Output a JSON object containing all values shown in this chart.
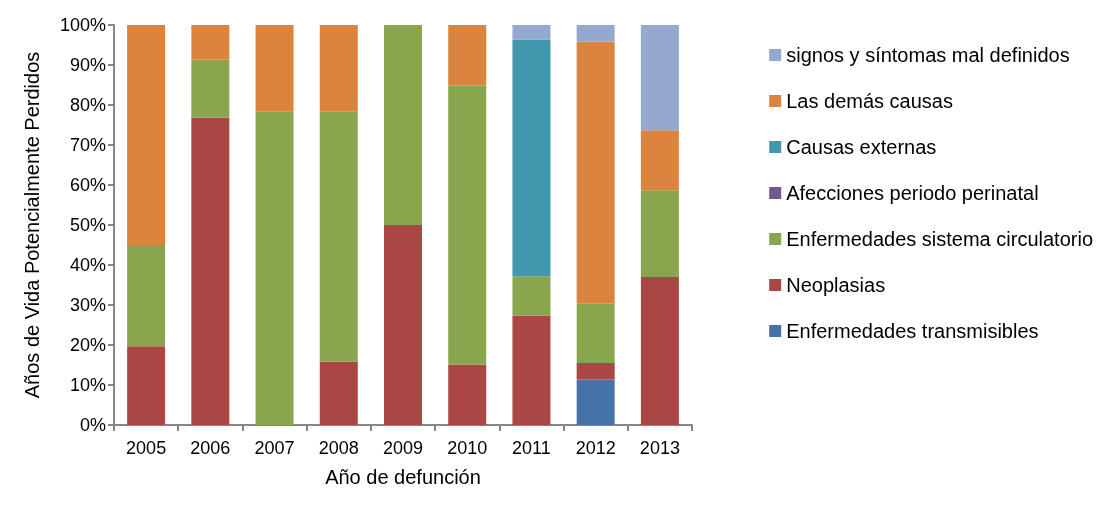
{
  "chart_data": {
    "type": "bar",
    "stacked": true,
    "xlabel": "Año de defunción",
    "ylabel": "Años de Vida Potencialmente Perdidos",
    "categories": [
      "2005",
      "2006",
      "2007",
      "2008",
      "2009",
      "2010",
      "2011",
      "2012",
      "2013"
    ],
    "series": [
      {
        "name": "Enfermedades transmisibles",
        "color": "#4572a7",
        "values": [
          0,
          0,
          0,
          0,
          0,
          0,
          0,
          11.4,
          0
        ]
      },
      {
        "name": "Neoplasias",
        "color": "#aa4643",
        "values": [
          19.7,
          76.9,
          0,
          15.9,
          50,
          15.1,
          27.3,
          4.1,
          37.0
        ]
      },
      {
        "name": "Enfermedades sistema circulatorio",
        "color": "#89a54e",
        "values": [
          25.3,
          14.4,
          78.3,
          62.4,
          50,
          69.8,
          9.9,
          14.8,
          21.7
        ]
      },
      {
        "name": "Afecciones periodo perinatal",
        "color": "#71588f",
        "values": [
          0,
          0,
          0,
          0,
          0,
          0,
          0,
          0,
          0
        ]
      },
      {
        "name": "Causas externas",
        "color": "#4198af",
        "values": [
          0,
          0,
          0,
          0,
          0,
          0,
          59.2,
          0,
          0
        ]
      },
      {
        "name": "Las demás causas",
        "color": "#db843d",
        "values": [
          55.0,
          8.7,
          21.7,
          21.7,
          0,
          15.1,
          0,
          65.6,
          15.0
        ]
      },
      {
        "name": "signos y síntomas mal definidos",
        "color": "#93a9cf",
        "values": [
          0,
          0,
          0,
          0,
          0,
          0,
          3.6,
          4.1,
          26.3
        ]
      }
    ],
    "ylim": [
      0,
      100
    ],
    "yticks": [
      {
        "value": 0,
        "label": "0%"
      },
      {
        "value": 10,
        "label": "10%"
      },
      {
        "value": 20,
        "label": "20%"
      },
      {
        "value": 30,
        "label": "30%"
      },
      {
        "value": 40,
        "label": "40%"
      },
      {
        "value": 50,
        "label": "50%"
      },
      {
        "value": 60,
        "label": "60%"
      },
      {
        "value": 70,
        "label": "70%"
      },
      {
        "value": 80,
        "label": "80%"
      },
      {
        "value": 90,
        "label": "90%"
      },
      {
        "value": 100,
        "label": "100%"
      }
    ],
    "grid": false,
    "legend": "right"
  }
}
